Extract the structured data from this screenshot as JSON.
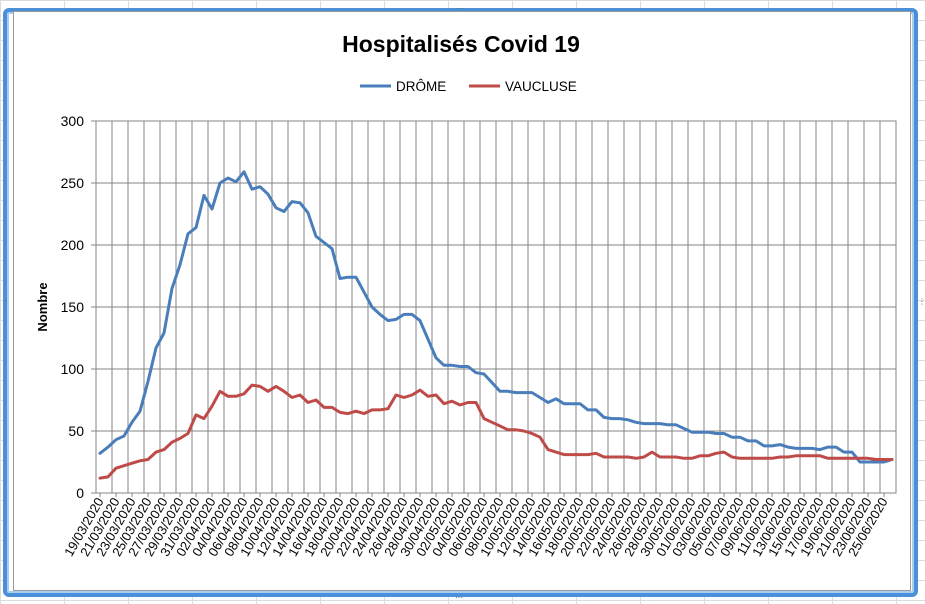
{
  "chart_data": {
    "type": "line",
    "title": "Hospitalisés Covid 19",
    "xlabel": "",
    "ylabel": "Nombre",
    "ylim": [
      0,
      300
    ],
    "yticks": [
      0,
      50,
      100,
      150,
      200,
      250,
      300
    ],
    "grid": true,
    "legend_position": "top",
    "x": [
      "19/03/2020",
      "20/03/2020",
      "21/03/2020",
      "22/03/2020",
      "23/03/2020",
      "24/03/2020",
      "25/03/2020",
      "26/03/2020",
      "27/03/2020",
      "28/03/2020",
      "29/03/2020",
      "30/03/2020",
      "31/03/2020",
      "01/04/2020",
      "02/04/2020",
      "03/04/2020",
      "04/04/2020",
      "05/04/2020",
      "06/04/2020",
      "07/04/2020",
      "08/04/2020",
      "09/04/2020",
      "10/04/2020",
      "11/04/2020",
      "12/04/2020",
      "13/04/2020",
      "14/04/2020",
      "15/04/2020",
      "16/04/2020",
      "17/04/2020",
      "18/04/2020",
      "19/04/2020",
      "20/04/2020",
      "21/04/2020",
      "22/04/2020",
      "23/04/2020",
      "24/04/2020",
      "25/04/2020",
      "26/04/2020",
      "27/04/2020",
      "28/04/2020",
      "29/04/2020",
      "30/04/2020",
      "01/05/2020",
      "02/05/2020",
      "03/05/2020",
      "04/05/2020",
      "05/05/2020",
      "06/05/2020",
      "07/05/2020",
      "08/05/2020",
      "09/05/2020",
      "10/05/2020",
      "11/05/2020",
      "12/05/2020",
      "13/05/2020",
      "14/05/2020",
      "15/05/2020",
      "16/05/2020",
      "17/05/2020",
      "18/05/2020",
      "19/05/2020",
      "20/05/2020",
      "21/05/2020",
      "22/05/2020",
      "23/05/2020",
      "24/05/2020",
      "25/05/2020",
      "26/05/2020",
      "27/05/2020",
      "28/05/2020",
      "29/05/2020",
      "30/05/2020",
      "31/05/2020",
      "01/06/2020",
      "02/06/2020",
      "03/06/2020",
      "04/06/2020",
      "05/06/2020",
      "06/06/2020",
      "07/06/2020",
      "08/06/2020",
      "09/06/2020",
      "10/06/2020",
      "11/06/2020",
      "12/06/2020",
      "13/06/2020",
      "14/06/2020",
      "15/06/2020",
      "16/06/2020",
      "17/06/2020",
      "18/06/2020",
      "19/06/2020",
      "20/06/2020",
      "21/06/2020",
      "22/06/2020",
      "23/06/2020",
      "24/06/2020",
      "25/06/2020",
      "26/06/2020"
    ],
    "xtick_labels": [
      "19/03/2020",
      "21/03/2020",
      "23/03/2020",
      "25/03/2020",
      "27/03/2020",
      "29/03/2020",
      "31/03/2020",
      "02/04/2020",
      "04/04/2020",
      "06/04/2020",
      "08/04/2020",
      "10/04/2020",
      "12/04/2020",
      "14/04/2020",
      "16/04/2020",
      "18/04/2020",
      "20/04/2020",
      "22/04/2020",
      "24/04/2020",
      "26/04/2020",
      "28/04/2020",
      "30/04/2020",
      "02/05/2020",
      "04/05/2020",
      "06/05/2020",
      "08/05/2020",
      "10/05/2020",
      "12/05/2020",
      "14/05/2020",
      "16/05/2020",
      "18/05/2020",
      "20/05/2020",
      "22/05/2020",
      "24/05/2020",
      "26/05/2020",
      "28/05/2020",
      "30/05/2020",
      "01/06/2020",
      "03/06/2020",
      "05/06/2020",
      "07/06/2020",
      "09/06/2020",
      "11/06/2020",
      "13/06/2020",
      "15/06/2020",
      "17/06/2020",
      "19/06/2020",
      "21/06/2020",
      "23/06/2020",
      "25/06/2020"
    ],
    "series": [
      {
        "name": "DRÔME",
        "color": "#4a7ebb",
        "values": [
          32,
          37,
          43,
          46,
          57,
          66,
          90,
          117,
          129,
          165,
          184,
          209,
          214,
          240,
          229,
          250,
          254,
          251,
          259,
          245,
          247,
          241,
          230,
          227,
          235,
          234,
          226,
          207,
          202,
          197,
          173,
          174,
          174,
          162,
          150,
          144,
          139,
          140,
          144,
          144,
          139,
          124,
          109,
          103,
          103,
          102,
          102,
          97,
          96,
          89,
          82,
          82,
          81,
          81,
          81,
          77,
          73,
          76,
          72,
          72,
          72,
          67,
          67,
          61,
          60,
          60,
          59,
          57,
          56,
          56,
          56,
          55,
          55,
          52,
          49,
          49,
          49,
          48,
          48,
          45,
          45,
          42,
          42,
          38,
          38,
          39,
          37,
          36,
          36,
          36,
          35,
          37,
          37,
          33,
          33,
          25,
          25,
          25,
          25,
          27
        ],
        "end_value": 27
      },
      {
        "name": "VAUCLUSE",
        "color": "#be4b48",
        "values": [
          12,
          13,
          20,
          22,
          24,
          26,
          27,
          33,
          35,
          41,
          44,
          48,
          63,
          60,
          70,
          82,
          78,
          78,
          80,
          87,
          86,
          82,
          86,
          82,
          77,
          79,
          73,
          75,
          69,
          69,
          65,
          64,
          66,
          64,
          67,
          67,
          68,
          79,
          77,
          79,
          83,
          78,
          79,
          72,
          74,
          71,
          73,
          73,
          60,
          57,
          54,
          51,
          51,
          50,
          48,
          45,
          35,
          33,
          31,
          31,
          31,
          31,
          32,
          29,
          29,
          29,
          29,
          28,
          29,
          33,
          29,
          29,
          29,
          28,
          28,
          30,
          30,
          32,
          33,
          29,
          28,
          28,
          28,
          28,
          28,
          29,
          29,
          30,
          30,
          30,
          30,
          28,
          28,
          28,
          28,
          28,
          28,
          27,
          27,
          27
        ]
      }
    ]
  }
}
